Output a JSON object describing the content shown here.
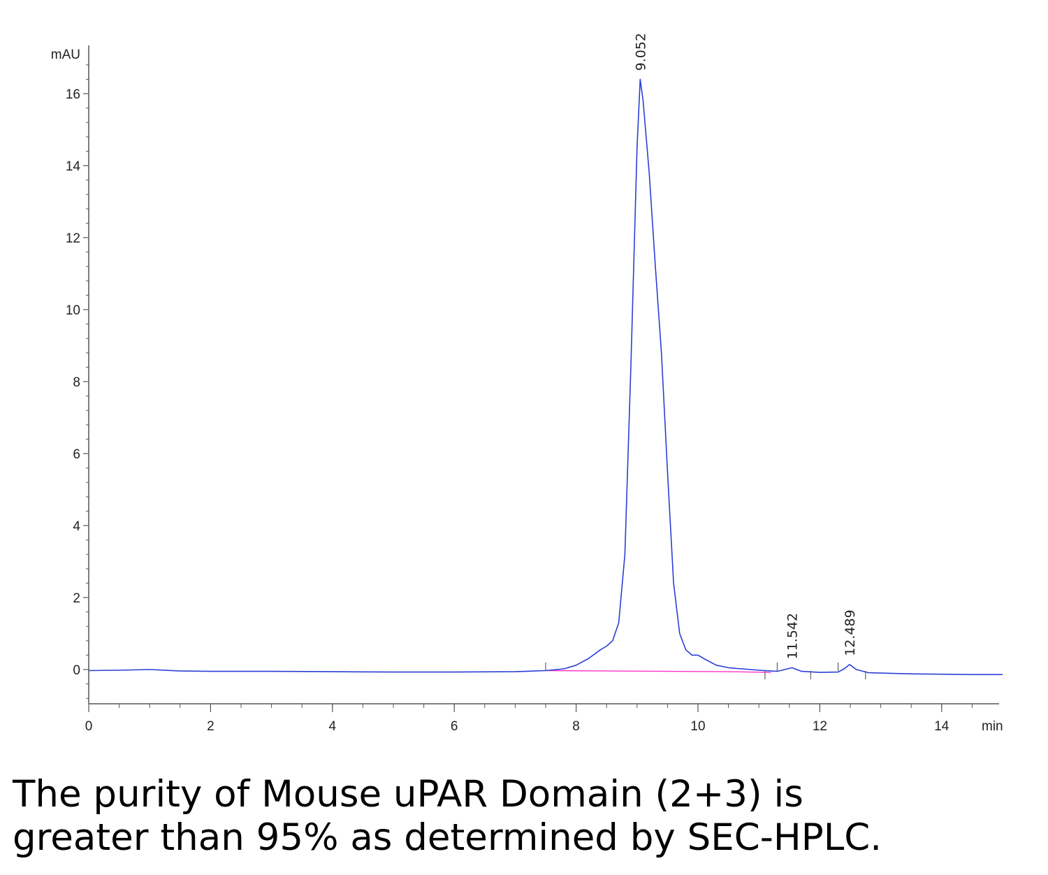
{
  "chart_data": {
    "type": "line",
    "x_unit_label": "min",
    "y_unit_label": "mAU",
    "xlim": [
      0,
      15
    ],
    "ylim": [
      -1,
      17
    ],
    "x_ticks": [
      0,
      2,
      4,
      6,
      8,
      10,
      12,
      14
    ],
    "y_ticks": [
      0,
      2,
      4,
      6,
      8,
      10,
      12,
      14,
      16
    ],
    "grid": false,
    "legend": "none",
    "series": [
      {
        "color": "#2b3fd4",
        "x": [
          0,
          0.5,
          1.0,
          1.5,
          2.0,
          3.0,
          4.0,
          5.0,
          6.0,
          7.0,
          7.5,
          7.8,
          8.0,
          8.2,
          8.4,
          8.5,
          8.6,
          8.7,
          8.8,
          8.9,
          9.0,
          9.052,
          9.1,
          9.2,
          9.3,
          9.4,
          9.5,
          9.6,
          9.7,
          9.8,
          9.9,
          10.0,
          10.1,
          10.3,
          10.5,
          11.0,
          11.3,
          11.542,
          11.7,
          12.0,
          12.3,
          12.4,
          12.489,
          12.6,
          12.8,
          13.0,
          13.5,
          14.0,
          14.5,
          15.0
        ],
        "y": [
          -0.03,
          -0.02,
          0.0,
          -0.04,
          -0.05,
          -0.05,
          -0.06,
          -0.07,
          -0.07,
          -0.06,
          -0.03,
          0.02,
          0.12,
          0.3,
          0.55,
          0.65,
          0.8,
          1.3,
          3.2,
          8.5,
          14.5,
          16.4,
          15.8,
          13.8,
          11.2,
          8.8,
          5.5,
          2.4,
          1.0,
          0.55,
          0.4,
          0.4,
          0.3,
          0.12,
          0.05,
          -0.02,
          -0.05,
          0.05,
          -0.05,
          -0.08,
          -0.07,
          0.02,
          0.14,
          0.0,
          -0.09,
          -0.1,
          -0.12,
          -0.13,
          -0.14,
          -0.14
        ]
      },
      {
        "color": "#ff33cc",
        "x": [
          7.5,
          8.5,
          9.5,
          10.5,
          11.2
        ],
        "y": [
          -0.03,
          -0.04,
          -0.05,
          -0.06,
          -0.08
        ]
      }
    ],
    "peaks": [
      {
        "rt": 9.052,
        "label": "9.052"
      },
      {
        "rt": 11.542,
        "label": "11.542"
      },
      {
        "rt": 12.489,
        "label": "12.489"
      }
    ],
    "integration_marks_x": [
      7.5,
      11.1,
      11.3,
      11.85,
      12.3,
      12.75
    ]
  },
  "caption": {
    "line1": "The purity of Mouse uPAR Domain (2+3) is",
    "line2": "greater than 95% as determined by SEC-HPLC."
  }
}
